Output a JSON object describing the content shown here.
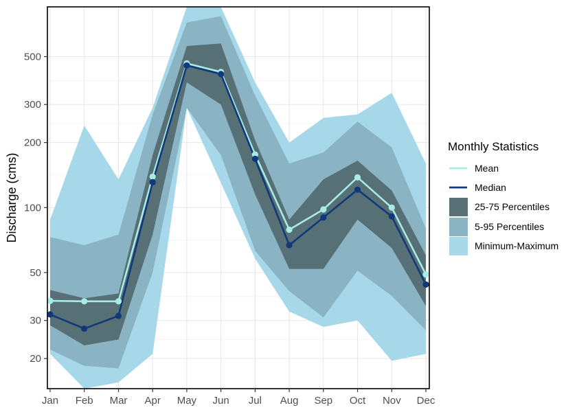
{
  "chart_data": {
    "type": "area",
    "title": "",
    "ylabel": "Discharge (cms)",
    "xlabel": "",
    "y_scale": "log",
    "ylim": [
      14.5,
      850
    ],
    "grid": true,
    "legend_position": "right",
    "categories": [
      "Jan",
      "Feb",
      "Mar",
      "Apr",
      "May",
      "Jun",
      "Jul",
      "Aug",
      "Sep",
      "Oct",
      "Nov",
      "Dec"
    ],
    "y_ticks": [
      20,
      30,
      50,
      100,
      200,
      300,
      500
    ],
    "y_tick_labels": [
      "20",
      "30",
      "50",
      "100",
      "200",
      "300",
      "500"
    ],
    "bands": [
      {
        "name": "Minimum-Maximum",
        "color": "#a6d8ea",
        "low": [
          21,
          14.5,
          15.5,
          21,
          290,
          130,
          58,
          33,
          28,
          30,
          19.5,
          21
        ],
        "high": [
          88,
          240,
          135,
          290,
          850,
          850,
          380,
          200,
          260,
          270,
          340,
          160
        ]
      },
      {
        "name": "5-95 Percentiles",
        "color": "#8ab4c4",
        "low": [
          22,
          18.5,
          18,
          50,
          290,
          175,
          63,
          41,
          31,
          51,
          39,
          27
        ],
        "high": [
          73,
          67,
          75,
          270,
          720,
          770,
          330,
          160,
          180,
          250,
          190,
          80
        ]
      },
      {
        "name": "25-75 Percentiles",
        "color": "#567075",
        "low": [
          28.5,
          23,
          24.5,
          75,
          380,
          300,
          115,
          52,
          52,
          88,
          65,
          35
        ],
        "high": [
          41.5,
          38,
          40,
          175,
          560,
          575,
          205,
          88,
          135,
          165,
          120,
          60
        ]
      }
    ],
    "series": [
      {
        "name": "Mean",
        "color": "#a8ece6",
        "values": [
          37,
          36.8,
          36.8,
          139,
          465,
          425,
          176,
          79,
          98,
          138,
          100,
          49
        ]
      },
      {
        "name": "Median",
        "color": "#11397a",
        "values": [
          32,
          27.5,
          31.5,
          131,
          455,
          415,
          168,
          67,
          90,
          121,
          91,
          44
        ]
      }
    ],
    "legend": {
      "title": "Monthly Statistics",
      "items": [
        {
          "label": "Mean",
          "kind": "line",
          "color": "#a8ece6"
        },
        {
          "label": "Median",
          "kind": "line",
          "color": "#11397a"
        },
        {
          "label": "25-75 Percentiles",
          "kind": "fill",
          "color": "#567075"
        },
        {
          "label": "5-95 Percentiles",
          "kind": "fill",
          "color": "#8ab4c4"
        },
        {
          "label": "Minimum-Maximum",
          "kind": "fill",
          "color": "#a6d8ea"
        }
      ]
    }
  }
}
